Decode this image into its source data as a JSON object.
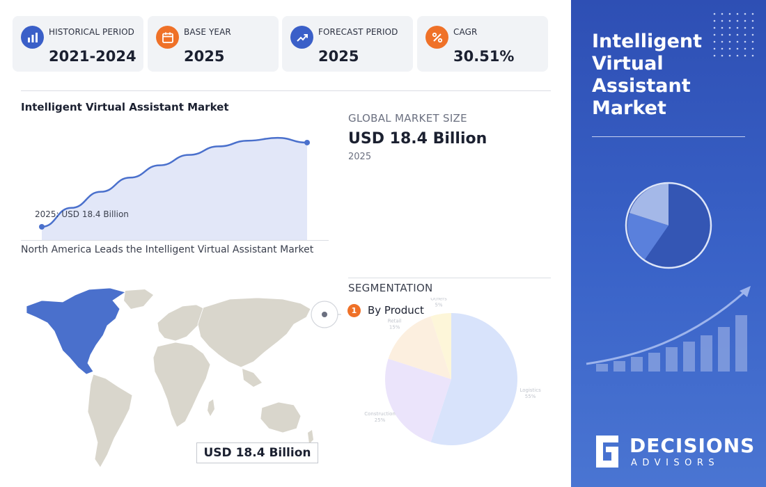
{
  "stats": [
    {
      "label": "HISTORICAL PERIOD",
      "value": "2021-2024",
      "icon": "bar-chart-icon",
      "color": "#3a5fc8"
    },
    {
      "label": "BASE YEAR",
      "value": "2025",
      "icon": "calendar-icon",
      "color": "#ef7128"
    },
    {
      "label": "FORECAST PERIOD",
      "value": "2025",
      "icon": "trend-up-icon",
      "color": "#3a5fc8"
    },
    {
      "label": "CAGR",
      "value": "30.51%",
      "icon": "percent-icon",
      "color": "#ef7128"
    }
  ],
  "growth": {
    "title": "Intelligent Virtual Assistant Market",
    "point_label": "2025: USD 18.4 Billion"
  },
  "market": {
    "label": "GLOBAL MARKET SIZE",
    "value": "USD 18.4 Billion",
    "year": "2025"
  },
  "region": {
    "title": "North America Leads the Intelligent Virtual Assistant Market",
    "value": "USD 18.4 Billion",
    "highlight_color": "#4a70cc"
  },
  "segmentation": {
    "label": "SEGMENTATION",
    "badge": "1",
    "name": "By Product"
  },
  "panel": {
    "title": "Intelligent Virtual Assistant Market",
    "brand_name": "DECISIONS",
    "brand_sub": "ADVISORS"
  },
  "chart_data": [
    {
      "type": "area",
      "title": "",
      "x": [
        0,
        1,
        2,
        3,
        4,
        5,
        6,
        7,
        8,
        9
      ],
      "values": [
        0.0,
        0.2,
        0.37,
        0.52,
        0.65,
        0.76,
        0.85,
        0.91,
        0.94,
        0.89
      ],
      "annotations": [
        "2025: USD 18.4 Billion"
      ],
      "grid": false,
      "legend": "none"
    },
    {
      "type": "pie",
      "categories": [
        "Logistics",
        "Construction",
        "Retail",
        "Others"
      ],
      "values": [
        55,
        25,
        15,
        5
      ],
      "labels": [
        "Logistics\n55%",
        "Construction\n25%",
        "Retail\n15%",
        "Others\n5%"
      ],
      "colors": [
        "#d8e3fb",
        "#ebe4fb",
        "#fcefdf",
        "#fdf6d9"
      ]
    }
  ]
}
